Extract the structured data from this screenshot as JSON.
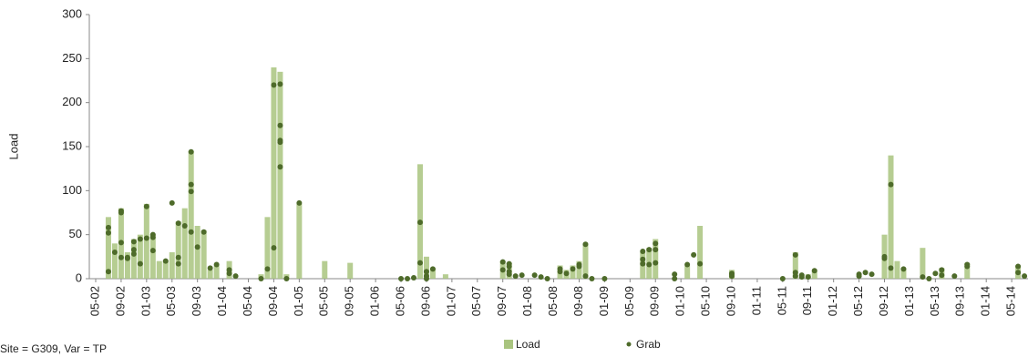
{
  "chart_data": {
    "type": "combo",
    "caption": "Site = G309, Var = TP",
    "y_label": "Load",
    "ylim": [
      0,
      300
    ],
    "yticks": [
      0,
      50,
      100,
      150,
      200,
      250,
      300
    ],
    "xticks": [
      "05-02",
      "09-02",
      "01-03",
      "05-03",
      "09-03",
      "01-04",
      "05-04",
      "09-04",
      "01-05",
      "05-05",
      "09-05",
      "01-06",
      "05-06",
      "09-06",
      "01-07",
      "05-07",
      "09-07",
      "01-08",
      "05-08",
      "09-08",
      "01-09",
      "05-09",
      "09-09",
      "01-10",
      "05-10",
      "09-10",
      "01-11",
      "05-11",
      "09-11",
      "01-12",
      "05-12",
      "09-12",
      "01-13",
      "05-13",
      "09-13",
      "01-14",
      "05-14"
    ],
    "legend": "bottom",
    "series": [
      {
        "name": "Load",
        "type": "bar",
        "color": "#a9c47f",
        "x": [
          "07-02",
          "08-02",
          "09-02",
          "10-02",
          "11-02",
          "12-02",
          "01-03",
          "02-03",
          "03-03",
          "04-03",
          "05-03",
          "06-03",
          "07-03",
          "08-03",
          "09-03",
          "10-03",
          "11-03",
          "12-03",
          "02-04",
          "07-04",
          "08-04",
          "09-04",
          "10-04",
          "11-04",
          "01-05",
          "05-05",
          "09-05",
          "08-06",
          "09-06",
          "10-06",
          "12-06",
          "09-07",
          "10-07",
          "06-08",
          "07-08",
          "08-08",
          "09-08",
          "10-08",
          "07-09",
          "08-09",
          "09-09",
          "02-10",
          "04-10",
          "09-10",
          "07-11",
          "09-11",
          "10-11",
          "09-12",
          "10-12",
          "11-12",
          "12-12",
          "03-13",
          "06-13",
          "10-13",
          "06-14"
        ],
        "values": [
          70,
          40,
          80,
          30,
          45,
          50,
          85,
          50,
          20,
          20,
          30,
          65,
          80,
          145,
          60,
          55,
          10,
          15,
          20,
          5,
          70,
          240,
          235,
          5,
          85,
          20,
          18,
          130,
          25,
          12,
          5,
          20,
          18,
          15,
          10,
          15,
          20,
          40,
          30,
          35,
          45,
          15,
          60,
          10,
          30,
          5,
          10,
          50,
          140,
          20,
          12,
          35,
          12,
          18,
          15
        ]
      },
      {
        "name": "Grab",
        "type": "scatter",
        "color": "#4e6b2a",
        "x": [
          "07-02",
          "07-02",
          "07-02",
          "08-02",
          "09-02",
          "09-02",
          "09-02",
          "09-02",
          "10-02",
          "10-02",
          "11-02",
          "11-02",
          "11-02",
          "12-02",
          "12-02",
          "01-03",
          "01-03",
          "02-03",
          "02-03",
          "02-03",
          "04-03",
          "05-03",
          "06-03",
          "06-03",
          "06-03",
          "07-03",
          "08-03",
          "08-03",
          "08-03",
          "08-03",
          "09-03",
          "10-03",
          "11-03",
          "12-03",
          "02-04",
          "02-04",
          "03-04",
          "07-04",
          "08-04",
          "09-04",
          "09-04",
          "10-04",
          "10-04",
          "10-04",
          "10-04",
          "10-04",
          "11-04",
          "01-05",
          "05-06",
          "06-06",
          "07-06",
          "08-06",
          "08-06",
          "09-06",
          "09-06",
          "09-06",
          "10-06",
          "09-07",
          "09-07",
          "10-07",
          "10-07",
          "10-07",
          "10-07",
          "11-07",
          "12-07",
          "02-08",
          "03-08",
          "04-08",
          "06-08",
          "06-08",
          "07-08",
          "08-08",
          "09-08",
          "09-08",
          "10-08",
          "10-08",
          "11-08",
          "01-09",
          "07-09",
          "07-09",
          "07-09",
          "08-09",
          "08-09",
          "09-09",
          "09-09",
          "09-09",
          "12-09",
          "12-09",
          "02-10",
          "03-10",
          "04-10",
          "09-10",
          "09-10",
          "09-10",
          "05-11",
          "07-11",
          "07-11",
          "07-11",
          "08-11",
          "08-11",
          "09-11",
          "10-11",
          "05-12",
          "05-12",
          "06-12",
          "07-12",
          "09-12",
          "09-12",
          "10-12",
          "10-12",
          "12-12",
          "03-13",
          "04-13",
          "05-13",
          "06-13",
          "06-13",
          "08-13",
          "10-13",
          "10-13",
          "06-14",
          "06-14",
          "07-14"
        ],
        "values": [
          58,
          52,
          8,
          30,
          24,
          77,
          75,
          41,
          24,
          23,
          42,
          33,
          28,
          17,
          45,
          82,
          46,
          47,
          50,
          32,
          20,
          86,
          63,
          24,
          17,
          60,
          53,
          144,
          107,
          99,
          36,
          53,
          12,
          16,
          10,
          6,
          3,
          0,
          11,
          35,
          220,
          155,
          157,
          174,
          221,
          127,
          0,
          86,
          0,
          0,
          1,
          64,
          18,
          8,
          3,
          0,
          11,
          19,
          10,
          17,
          14,
          8,
          5,
          3,
          4,
          4,
          2,
          0,
          8,
          11,
          6,
          11,
          16,
          14,
          39,
          3,
          0,
          0,
          31,
          22,
          17,
          16,
          33,
          33,
          40,
          18,
          5,
          0,
          16,
          27,
          17,
          6,
          5,
          3,
          0,
          27,
          7,
          3,
          4,
          2,
          2,
          9,
          5,
          3,
          7,
          5,
          23,
          25,
          107,
          12,
          11,
          2,
          0,
          6,
          10,
          4,
          3,
          16,
          14,
          14,
          7,
          3
        ]
      }
    ]
  }
}
